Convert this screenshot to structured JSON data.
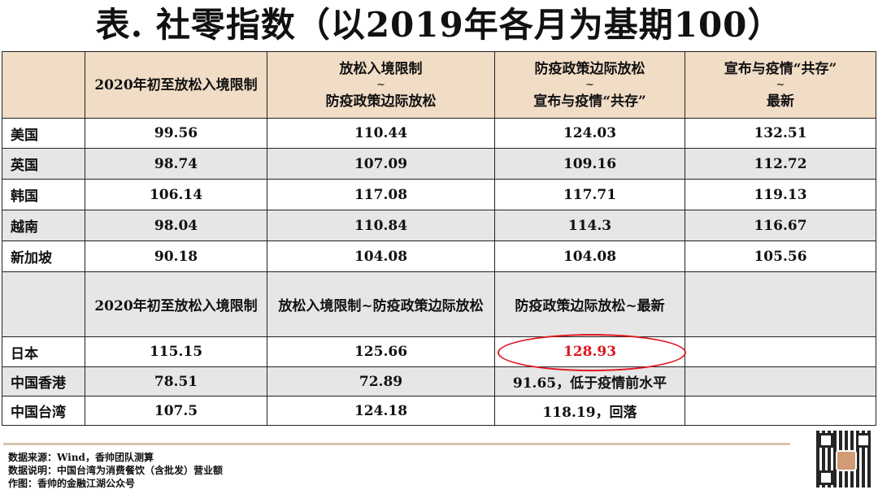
{
  "title": "表. 社零指数（以2019年各月为基期100）",
  "header": {
    "col1": "2020年初至放松入境限制",
    "col2_top": "放松入境限制",
    "col2_tilde": "~",
    "col2_bottom": "防疫政策边际放松",
    "col3_top": "防疫政策边际放松",
    "col3_tilde": "~",
    "col3_bottom": "宣布与疫情“共存”",
    "col4_top": "宣布与疫情“共存”",
    "col4_tilde": "~",
    "col4_bottom": "最新"
  },
  "rows_a": [
    {
      "label": "美国",
      "v1": "99.56",
      "v2": "110.44",
      "v3": "124.03",
      "v4": "132.51"
    },
    {
      "label": "英国",
      "v1": "98.74",
      "v2": "107.09",
      "v3": "109.16",
      "v4": "112.72"
    },
    {
      "label": "韩国",
      "v1": "106.14",
      "v2": "117.08",
      "v3": "117.71",
      "v4": "119.13"
    },
    {
      "label": "越南",
      "v1": "98.04",
      "v2": "110.84",
      "v3": "114.3",
      "v4": "116.67"
    },
    {
      "label": "新加坡",
      "v1": "90.18",
      "v2": "104.08",
      "v3": "104.08",
      "v4": "105.56"
    }
  ],
  "subheader": {
    "col1": "2020年初至放松入境限制",
    "col2": "放松入境限制~防疫政策边际放松",
    "col3": "防疫政策边际放松~最新"
  },
  "rows_b": [
    {
      "label": "日本",
      "v1": "115.15",
      "v2": "125.66",
      "v3": "128.93"
    },
    {
      "label": "中国香港",
      "v1": "78.51",
      "v2": "72.89",
      "v3": "91.65，低于疫情前水平"
    },
    {
      "label": "中国台湾",
      "v1": "107.5",
      "v2": "124.18",
      "v3": "118.19，回落"
    }
  ],
  "notes": {
    "source": "数据来源：Wind，香帅团队测算",
    "explain": "数据说明：中国台湾为消费餐饮（含批发）营业额",
    "author": "作图：香帅的金融江湖公众号"
  },
  "colors": {
    "header_bg": "#f1dcc6",
    "stripe_bg": "#e6e6e6",
    "highlight": "#e0141e",
    "divider": "#d7c3ad"
  },
  "icons": {
    "qr": "qr-code-icon"
  }
}
